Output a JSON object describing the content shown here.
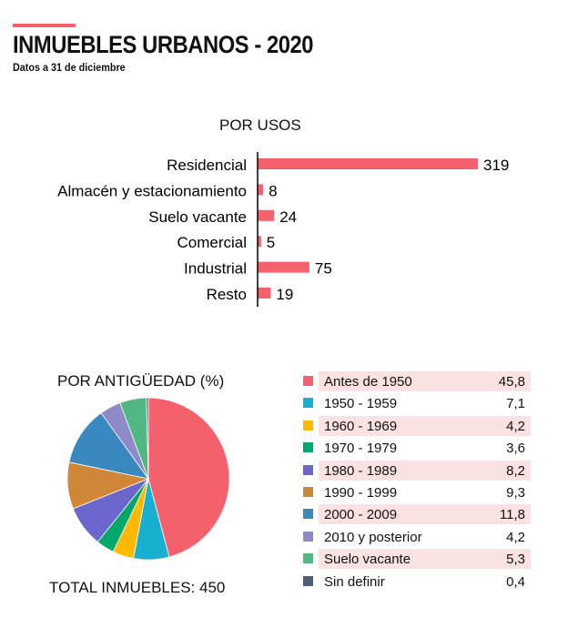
{
  "header": {
    "title": "INMUEBLES URBANOS - 2020",
    "subtitle": "Datos a 31 de diciembre",
    "accent_color": "#f4606c"
  },
  "chart_data": [
    {
      "type": "bar",
      "orientation": "horizontal",
      "title": "POR USOS",
      "categories": [
        "Residencial",
        "Almacén y estacionamiento",
        "Suelo vacante",
        "Comercial",
        "Industrial",
        "Resto"
      ],
      "values": [
        319,
        8,
        24,
        5,
        75,
        19
      ],
      "color": "#f4606c",
      "grid": false
    },
    {
      "type": "pie",
      "title": "POR ANTIGÜEDAD (%)",
      "categories": [
        "Antes de 1950",
        "1950 - 1959",
        "1960 - 1969",
        "1970 - 1979",
        "1980 - 1989",
        "1990 - 1999",
        "2000 - 2009",
        "2010 y posterior",
        "Suelo vacante",
        "Sin definir"
      ],
      "values_label": [
        "45,8",
        "7,1",
        "4,2",
        "3,6",
        "8,2",
        "9,3",
        "11,8",
        "4,2",
        "5,3",
        "0,4"
      ],
      "values": [
        45.8,
        7.1,
        4.2,
        3.6,
        8.2,
        9.3,
        11.8,
        4.2,
        5.3,
        0.4
      ],
      "colors": [
        "#f4606c",
        "#19afd0",
        "#ffb900",
        "#00a86b",
        "#6b66cc",
        "#d08838",
        "#3a88c0",
        "#8e8ac8",
        "#52b882",
        "#4a6078"
      ],
      "row_highlight_color": "#fbe2e2",
      "footer": "TOTAL INMUEBLES: 450"
    }
  ]
}
